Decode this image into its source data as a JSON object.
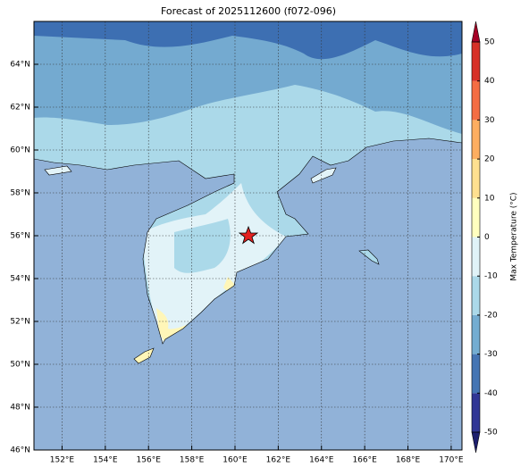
{
  "title": "Forecast of 2025112600 (f072-096)",
  "map": {
    "xlim": [
      150.7,
      170.5
    ],
    "ylim": [
      46,
      66
    ],
    "xticks": [
      {
        "value": 152,
        "label": "152°E"
      },
      {
        "value": 154,
        "label": "154°E"
      },
      {
        "value": 156,
        "label": "156°E"
      },
      {
        "value": 158,
        "label": "158°E"
      },
      {
        "value": 160,
        "label": "160°E"
      },
      {
        "value": 162,
        "label": "162°E"
      },
      {
        "value": 164,
        "label": "164°E"
      },
      {
        "value": 166,
        "label": "166°E"
      },
      {
        "value": 168,
        "label": "168°E"
      },
      {
        "value": 170,
        "label": "170°E"
      }
    ],
    "yticks": [
      {
        "value": 46,
        "label": "46°N"
      },
      {
        "value": 48,
        "label": "48°N"
      },
      {
        "value": 50,
        "label": "50°N"
      },
      {
        "value": 52,
        "label": "52°N"
      },
      {
        "value": 54,
        "label": "54°N"
      },
      {
        "value": 56,
        "label": "56°N"
      },
      {
        "value": 58,
        "label": "58°N"
      },
      {
        "value": 60,
        "label": "60°N"
      },
      {
        "value": 62,
        "label": "62°N"
      },
      {
        "value": 64,
        "label": "64°N"
      }
    ],
    "grid": true
  },
  "colorbar": {
    "label": "Max Temperature (°C)",
    "lim": [
      -50,
      50
    ],
    "ticks": [
      -50,
      -40,
      -30,
      -20,
      -10,
      0,
      10,
      20,
      30,
      40,
      50
    ],
    "colors": [
      "#313695",
      "#4575b4",
      "#74add1",
      "#abd9e9",
      "#e0f3f8",
      "#ffffbf",
      "#fee090",
      "#fdae61",
      "#f46d43",
      "#d73027"
    ],
    "under_color": "#1d1f6e",
    "over_color": "#a50026"
  }
}
